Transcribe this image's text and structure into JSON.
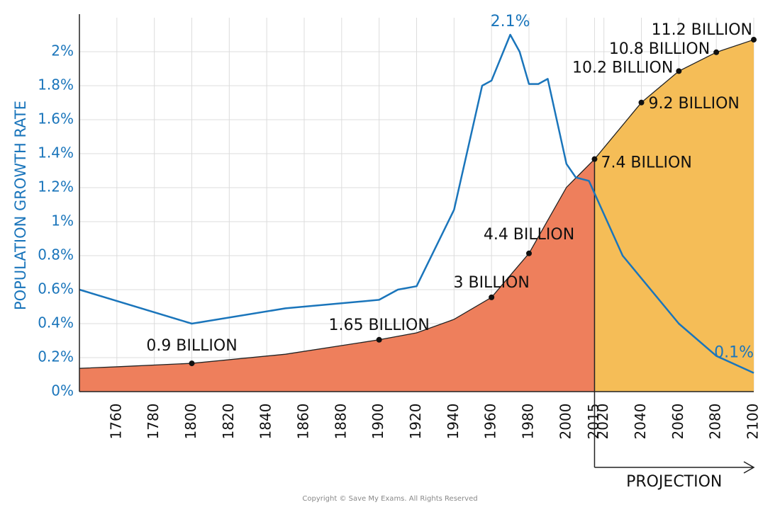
{
  "chart_data": {
    "type": "line",
    "y_label": "POPULATION GROWTH RATE",
    "projection_label": "PROJECTION",
    "projection_start": 2015,
    "footer": "Copyright © Save My Exams. All Rights Reserved",
    "xlim": [
      1740,
      2100
    ],
    "xticks": [
      1760,
      1780,
      1800,
      1820,
      1840,
      1860,
      1880,
      1900,
      1920,
      1940,
      1960,
      1980,
      2000,
      2015,
      2020,
      2040,
      2060,
      2080,
      2100
    ],
    "ylim": [
      0,
      2.2
    ],
    "yticks": [
      {
        "value": 0,
        "label": "0%"
      },
      {
        "value": 0.2,
        "label": "0.2%"
      },
      {
        "value": 0.4,
        "label": "0.4%"
      },
      {
        "value": 0.6,
        "label": "0.6%"
      },
      {
        "value": 0.8,
        "label": "0.8%"
      },
      {
        "value": 1,
        "label": "1%"
      },
      {
        "value": 1.2,
        "label": "1.2%"
      },
      {
        "value": 1.4,
        "label": "1.4%"
      },
      {
        "value": 1.6,
        "label": "1.6%"
      },
      {
        "value": 1.8,
        "label": "1.8%"
      },
      {
        "value": 2,
        "label": "2%"
      }
    ],
    "y2lim": [
      0,
      11.9
    ],
    "grid": true,
    "series": [
      {
        "color": "#1a75bb",
        "x": [
          1740,
          1800,
          1850,
          1900,
          1910,
          1920,
          1940,
          1955,
          1960,
          1970,
          1975,
          1980,
          1985,
          1990,
          2000,
          2005,
          2012,
          2030,
          2060,
          2080,
          2100
        ],
        "values": [
          0.6,
          0.4,
          0.49,
          0.54,
          0.6,
          0.62,
          1.07,
          1.8,
          1.83,
          2.1,
          2.0,
          1.81,
          1.81,
          1.84,
          1.34,
          1.26,
          1.24,
          0.8,
          0.4,
          0.21,
          0.11
        ],
        "value_labels": [
          null,
          null,
          null,
          null,
          null,
          null,
          null,
          null,
          null,
          "2.1%",
          null,
          null,
          null,
          null,
          null,
          null,
          null,
          null,
          null,
          null,
          "0.1%"
        ]
      },
      {
        "axis": "y2",
        "fill": true,
        "color": "#ee7f5c",
        "projection_color": "#f5bd57",
        "x": [
          1740,
          1760,
          1800,
          1850,
          1900,
          1920,
          1940,
          1960,
          1980,
          2000,
          2015,
          2040,
          2060,
          2080,
          2100
        ],
        "values": [
          0.74,
          0.79,
          0.9,
          1.19,
          1.65,
          1.87,
          2.3,
          3,
          4.4,
          6.5,
          7.4,
          9.2,
          10.2,
          10.8,
          11.2
        ],
        "value_labels": [
          null,
          null,
          "0.9 BILLION",
          null,
          "1.65 BILLION",
          null,
          null,
          "3 BILLION",
          "4.4 BILLION",
          null,
          "7.4 BILLION",
          "9.2 BILLION",
          "10.2 BILLION",
          "10.8 BILLION",
          "11.2 BILLION"
        ]
      }
    ]
  }
}
